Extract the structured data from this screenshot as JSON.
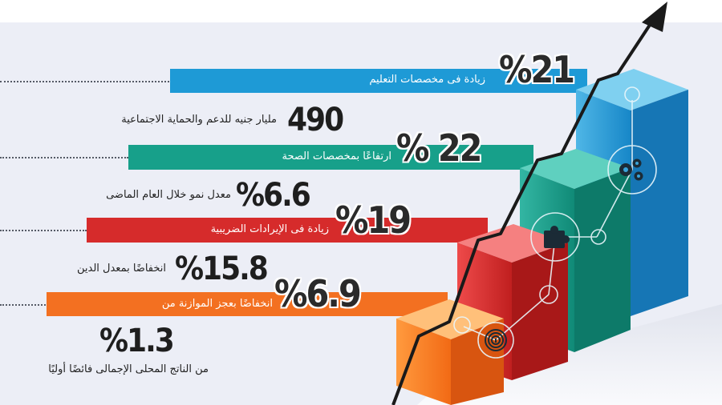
{
  "rows": [
    {
      "big": "%21",
      "text": "زيادة فى مخصصات التعليم",
      "color": "#1e9ad6"
    },
    {
      "big": "490",
      "text": "مليار جنيه للدعم والحماية الاجتماعية"
    },
    {
      "big": "% 22",
      "text": "ارتفاعًا بمخصصات الصحة",
      "color": "#17a08a"
    },
    {
      "big": "%6.6",
      "text": "معدل نمو خلال العام الماضى"
    },
    {
      "big": "%19",
      "text": "زيادة فى الإيرادات الضريبية",
      "color": "#d62b2b"
    },
    {
      "big": "%15.8",
      "text": "انخفاضًا بمعدل الدين"
    },
    {
      "big": "%6.9",
      "text": "انخفاضًا بعجز الموازنة من",
      "color": "#f37021"
    },
    {
      "big": "%1.3",
      "text": "من الناتج المحلى الإجمالى فائضًا أوليًا"
    }
  ],
  "icons": [
    "gears-icon",
    "puzzle-icon",
    "fingerprint-icon"
  ]
}
